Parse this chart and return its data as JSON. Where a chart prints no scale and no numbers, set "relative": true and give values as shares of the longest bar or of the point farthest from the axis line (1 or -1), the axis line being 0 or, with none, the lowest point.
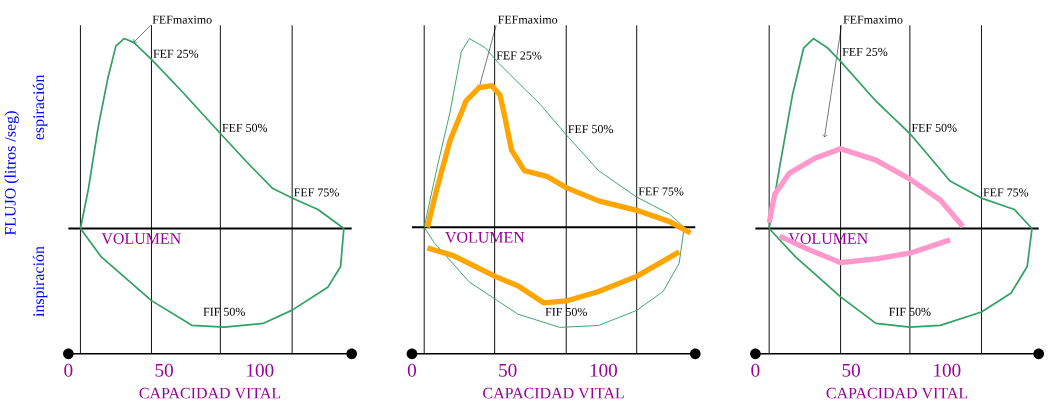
{
  "chart_data": [
    {
      "type": "line",
      "relative": true,
      "xlabel": "CAPACIDAD VITAL",
      "ylabel": "FLUJO (litros /seg)",
      "xlim": [
        0,
        148
      ],
      "xticks": [
        0,
        50,
        100
      ],
      "series": [
        {
          "color": "#33a066",
          "x": [
            6.3,
            10.5,
            15.5,
            20.6,
            24.8,
            29.1,
            34.1,
            43.4,
            59.5,
            79.4,
            93.2,
            106.8,
            116.9,
            130.4,
            143.9
          ],
          "values": [
            0,
            0.21,
            0.53,
            0.79,
            0.96,
            1.0,
            0.98,
            0.89,
            0.72,
            0.5,
            0.35,
            0.21,
            0.16,
            0.1,
            0
          ]
        },
        {
          "color": "#33a066",
          "x": [
            6.3,
            17.2,
            43.4,
            64.5,
            81.4,
            101.7,
            116.9,
            135.5,
            142.2,
            143.9
          ],
          "values": [
            0,
            -0.15,
            -0.38,
            -0.51,
            -0.52,
            -0.5,
            -0.43,
            -0.31,
            -0.2,
            0
          ]
        }
      ],
      "ref_lines": [
        {
          "axis": "x",
          "value": 6.3
        },
        {
          "axis": "x",
          "value": 43.4
        },
        {
          "axis": "x",
          "value": 79.4
        },
        {
          "axis": "x",
          "value": 116.9
        }
      ],
      "annotations": [
        {
          "text": "FEFmaximo",
          "x": 34.1,
          "y": 0.98
        },
        {
          "text": "FEF 25%",
          "x": 43.4,
          "y": 0.89
        },
        {
          "text": "FEF 50%",
          "x": 79.4,
          "y": 0.5
        },
        {
          "text": "FEF 75%",
          "x": 116.9,
          "y": 0.16
        },
        {
          "text": "FIF 50%",
          "x": 81.4,
          "y": -0.52
        },
        "VOLUMEN",
        "espiración",
        "inspiración"
      ]
    },
    {
      "type": "line",
      "relative": true,
      "xlabel": "CAPACIDAD VITAL",
      "xlim": [
        0,
        148
      ],
      "xticks": [
        0,
        50,
        100
      ],
      "series": [
        {
          "color": "#33a066",
          "x": [
            6.4,
            13.2,
            19.9,
            25.8,
            30.0,
            38.4,
            45.2,
            67.1,
            80.6,
            97.5,
            117.4,
            134.6,
            142.2
          ],
          "values": [
            0,
            0.32,
            0.61,
            0.93,
            1.0,
            0.95,
            0.87,
            0.65,
            0.49,
            0.3,
            0.16,
            0.07,
            0
          ]
        },
        {
          "color": "#33a066",
          "x": [
            6.4,
            11.5,
            30.0,
            55.3,
            77.2,
            97.5,
            117.4,
            131.2,
            139.6,
            142.2
          ],
          "values": [
            0,
            -0.08,
            -0.29,
            -0.46,
            -0.53,
            -0.52,
            -0.44,
            -0.34,
            -0.19,
            0
          ]
        },
        {
          "color": "#ffa500",
          "x": [
            8.1,
            13.2,
            19.9,
            28.3,
            35.1,
            41.8,
            46.0,
            48.6,
            52.0,
            58.7,
            70.5,
            80.6,
            97.5,
            117.4,
            134.6,
            145.5
          ],
          "values": [
            0,
            0.21,
            0.46,
            0.67,
            0.74,
            0.75,
            0.7,
            0.58,
            0.41,
            0.3,
            0.27,
            0.21,
            0.14,
            0.09,
            0.03,
            -0.03
          ]
        },
        {
          "color": "#ffa500",
          "x": [
            8.1,
            21.6,
            43.5,
            55.3,
            68.8,
            80.6,
            97.5,
            117.4,
            139.6
          ],
          "values": [
            -0.11,
            -0.15,
            -0.26,
            -0.31,
            -0.4,
            -0.39,
            -0.34,
            -0.26,
            -0.13
          ]
        }
      ],
      "ref_lines": [
        {
          "axis": "x",
          "value": 6.4
        },
        {
          "axis": "x",
          "value": 43.2
        },
        {
          "axis": "x",
          "value": 80.6
        },
        {
          "axis": "x",
          "value": 117.4
        }
      ],
      "annotations": [
        {
          "text": "FEFmaximo",
          "x": 35.1,
          "y": 0.74
        },
        {
          "text": "FEF 25%",
          "x": 43.2,
          "y": 0.88
        },
        {
          "text": "FEF 50%",
          "x": 80.6,
          "y": 0.49
        },
        {
          "text": "FEF 75%",
          "x": 117.4,
          "y": 0.16
        },
        {
          "text": "FIF 50%",
          "x": 80.6,
          "y": -0.53
        },
        "VOLUMEN"
      ]
    },
    {
      "type": "line",
      "relative": true,
      "xlabel": "CAPACIDAD VITAL",
      "xlim": [
        0,
        148
      ],
      "xticks": [
        0,
        50,
        100
      ],
      "series": [
        {
          "color": "#33a066",
          "x": [
            7.2,
            12.6,
            19.3,
            25.2,
            30.3,
            37.8,
            44.5,
            63.0,
            80.7,
            101.7,
            118.1,
            135.3,
            144.5
          ],
          "values": [
            0,
            0.32,
            0.7,
            0.95,
            1.0,
            0.95,
            0.88,
            0.67,
            0.5,
            0.25,
            0.16,
            0.1,
            0
          ]
        },
        {
          "color": "#33a066",
          "x": [
            7.2,
            21.0,
            44.5,
            63.0,
            80.7,
            96.6,
            118.1,
            133.6,
            142.0,
            144.5
          ],
          "values": [
            0,
            -0.15,
            -0.36,
            -0.5,
            -0.52,
            -0.51,
            -0.44,
            -0.34,
            -0.2,
            0
          ]
        },
        {
          "color": "#ff99cc",
          "x": [
            7.2,
            10.1,
            17.6,
            31.1,
            44.5,
            63.0,
            80.7,
            96.6,
            108.4
          ],
          "values": [
            0.03,
            0.18,
            0.29,
            0.37,
            0.42,
            0.36,
            0.26,
            0.15,
            0.01
          ]
        },
        {
          "color": "#ff99cc",
          "x": [
            12.6,
            27.6,
            44.5,
            63.0,
            80.7,
            101.7
          ],
          "values": [
            -0.04,
            -0.11,
            -0.18,
            -0.16,
            -0.13,
            -0.06
          ]
        }
      ],
      "ref_lines": [
        {
          "axis": "x",
          "value": 7.2
        },
        {
          "axis": "x",
          "value": 44.5
        },
        {
          "axis": "x",
          "value": 80.7
        },
        {
          "axis": "x",
          "value": 118.1
        }
      ],
      "annotations": [
        {
          "text": "FEFmaximo",
          "x": 36.1,
          "y": 0.48
        },
        {
          "text": "FEF 25%",
          "x": 44.5,
          "y": 0.9
        },
        {
          "text": "FEF 50%",
          "x": 80.7,
          "y": 0.5
        },
        {
          "text": "FEF 75%",
          "x": 118.1,
          "y": 0.16
        },
        {
          "text": "FIF 50%",
          "x": 80.7,
          "y": -0.52
        },
        "VOLUMEN"
      ]
    }
  ]
}
